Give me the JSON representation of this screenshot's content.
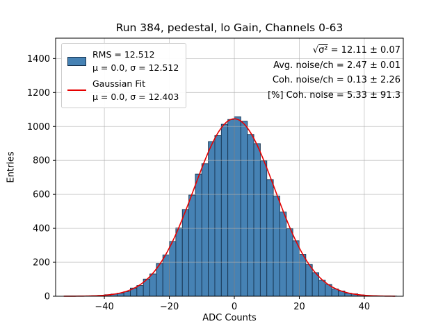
{
  "legend": {
    "entries": [
      {
        "symbol": "histogram-patch",
        "line1": "RMS = 12.512",
        "line2": "μ = 0.0, σ = 12.512"
      },
      {
        "symbol": "fit-line",
        "line1": "Gaussian Fit",
        "line2": "μ = 0.0, σ = 12.403"
      }
    ]
  },
  "stats": {
    "line1_radical": "√",
    "line1_radicand": "σ²",
    "line1_rest": " = 12.11 ± 0.07",
    "line2": "Avg. noise/ch = 2.47 ± 0.01",
    "line3": "Coh. noise/ch = 0.13 ± 2.26",
    "line4": "[%] Coh. noise = 5.33 ± 91.3"
  },
  "chart_data": {
    "type": "bar",
    "subtype": "histogram",
    "title": "Run 384, pedestal, lo Gain, Channels 0-63",
    "xlabel": "ADC Counts",
    "ylabel": "Entries",
    "xlim": [
      -55,
      52
    ],
    "ylim": [
      0,
      1520
    ],
    "xticks": [
      -40,
      -20,
      0,
      20,
      40
    ],
    "yticks": [
      0,
      200,
      400,
      600,
      800,
      1000,
      1200,
      1400
    ],
    "grid": true,
    "grid_color": "#b0b0b0",
    "bar_color": "#4682b4",
    "bar_edge_color": "#16324f",
    "bin_width": 2,
    "bin_centers": [
      -51,
      -49,
      -47,
      -45,
      -43,
      -41,
      -39,
      -37,
      -35,
      -33,
      -31,
      -29,
      -27,
      -25,
      -23,
      -21,
      -19,
      -17,
      -15,
      -13,
      -11,
      -9,
      -7,
      -5,
      -3,
      -1,
      1,
      3,
      5,
      7,
      9,
      11,
      13,
      15,
      17,
      19,
      21,
      23,
      25,
      27,
      29,
      31,
      33,
      35,
      37,
      39,
      41,
      43,
      45,
      47,
      49,
      51
    ],
    "counts": [
      1,
      1,
      1,
      2,
      3,
      5,
      9,
      13,
      18,
      27,
      48,
      63,
      101,
      131,
      193,
      243,
      322,
      402,
      511,
      596,
      719,
      781,
      911,
      946,
      1013,
      1041,
      1057,
      1031,
      953,
      899,
      798,
      687,
      590,
      496,
      398,
      327,
      247,
      187,
      139,
      94,
      69,
      43,
      31,
      18,
      14,
      8,
      4,
      3,
      2,
      1,
      1,
      0
    ],
    "fit": {
      "type": "gaussian",
      "mu": 0.0,
      "sigma": 12.403,
      "amplitude": 1045,
      "color": "#e60000",
      "range": [
        -52.5,
        49.5
      ]
    }
  }
}
